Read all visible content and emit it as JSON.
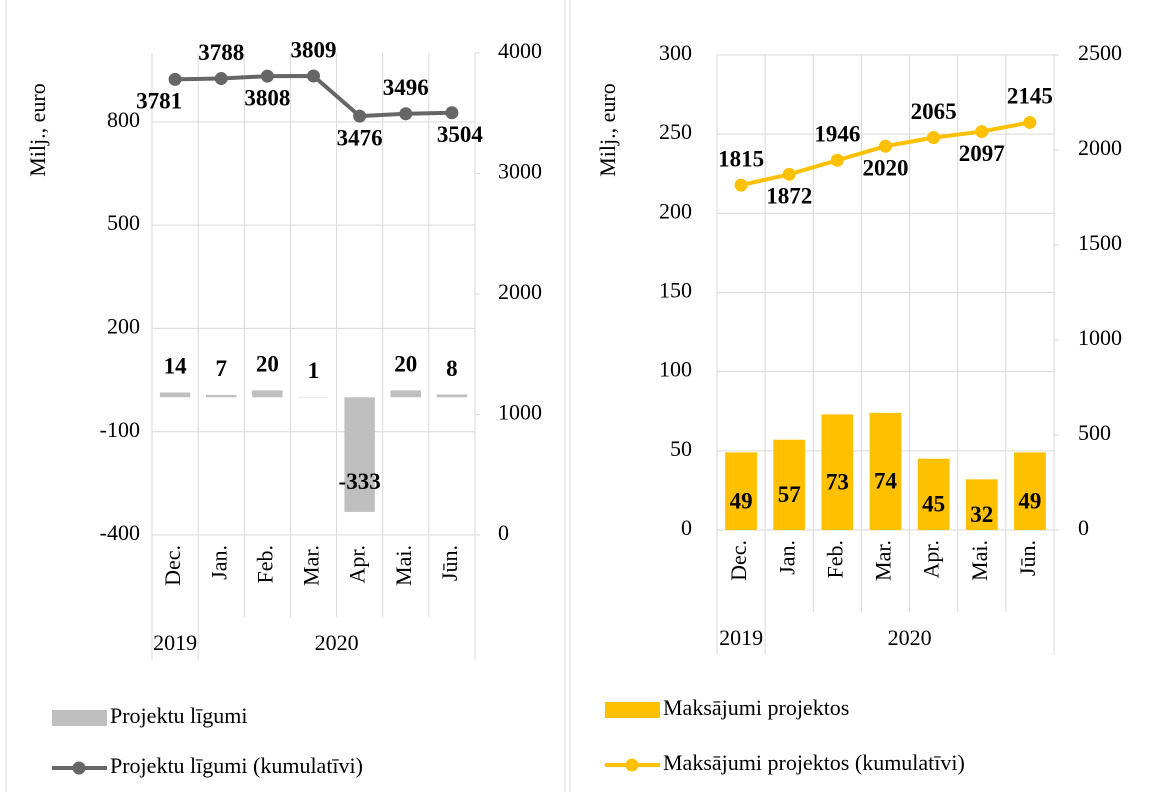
{
  "chart_data": [
    {
      "type": "combo",
      "y_label": "Milj., euro",
      "categories": [
        "Dec.",
        "Jan.",
        "Feb.",
        "Mar.",
        "Apr.",
        "Mai.",
        "Jūn."
      ],
      "category_groups": [
        "2019",
        "2020",
        null,
        null,
        null,
        null,
        null
      ],
      "ylim": [
        -400,
        1000
      ],
      "yticks": [
        -400,
        -100,
        200,
        500,
        800
      ],
      "y2lim": [
        0,
        4000
      ],
      "y2ticks": [
        0,
        1000,
        2000,
        3000,
        4000
      ],
      "grid": true,
      "series": [
        {
          "name": "Projektu līgumi",
          "type": "bar",
          "color": "#bfbfbf",
          "values": [
            14,
            7,
            20,
            1,
            -333,
            20,
            8
          ]
        },
        {
          "name": "Projektu līgumi (kumulatīvi)",
          "type": "line",
          "axis": "y2",
          "color": "#666666",
          "values": [
            3781,
            3788,
            3808,
            3809,
            3476,
            3496,
            3504
          ]
        }
      ]
    },
    {
      "type": "combo",
      "y_label": "Milj., euro",
      "categories": [
        "Dec.",
        "Jan.",
        "Feb.",
        "Mar.",
        "Apr.",
        "Mai.",
        "Jūn."
      ],
      "category_groups": [
        "2019",
        "2020",
        null,
        null,
        null,
        null,
        null
      ],
      "ylim": [
        0,
        300
      ],
      "yticks": [
        0,
        50,
        100,
        150,
        200,
        250,
        300
      ],
      "y2lim": [
        0,
        2500
      ],
      "y2ticks": [
        0,
        500,
        1000,
        1500,
        2000,
        2500
      ],
      "grid": true,
      "series": [
        {
          "name": "Maksājumi projektos",
          "type": "bar",
          "color": "#ffc000",
          "values": [
            49,
            57,
            73,
            74,
            45,
            32,
            49
          ]
        },
        {
          "name": "Maksājumi projektos (kumulatīvi)",
          "type": "line",
          "axis": "y2",
          "color": "#ffc000",
          "values": [
            1815,
            1872,
            1946,
            2020,
            2065,
            2097,
            2145
          ]
        }
      ]
    }
  ]
}
